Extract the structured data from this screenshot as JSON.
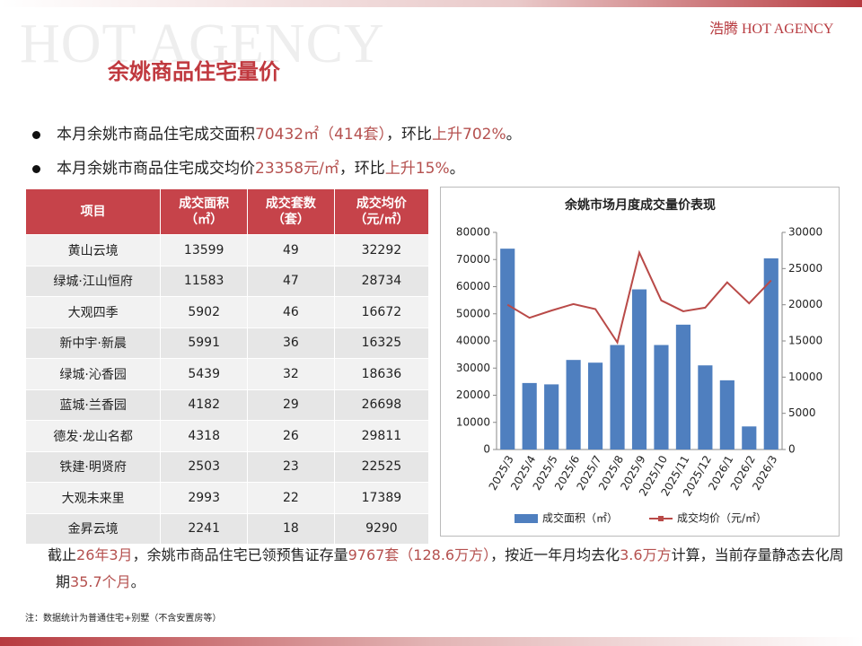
{
  "header": {
    "watermark": "HOT AGENCY",
    "brand": "浩腾 HOT AGENCY",
    "title": "余姚商品住宅量价"
  },
  "bullets": [
    [
      {
        "text": "本月余姚市商品住宅成交面积"
      },
      {
        "text": "70432㎡（414套）",
        "em": true
      },
      {
        "text": "，环比"
      },
      {
        "text": "上升702%",
        "em": true
      },
      {
        "text": "。"
      }
    ],
    [
      {
        "text": "本月余姚市商品住宅成交均价"
      },
      {
        "text": "23358元/㎡",
        "em": true
      },
      {
        "text": "，环比"
      },
      {
        "text": "上升15%",
        "em": true
      },
      {
        "text": "。"
      }
    ],
    [
      {
        "text": "截止"
      },
      {
        "text": "26年3月",
        "em": true
      },
      {
        "text": "，余姚市商品住宅已领预售证存量"
      },
      {
        "text": "9767套（128.6万方）",
        "em": true
      },
      {
        "text": "，按近一年月均去化"
      },
      {
        "text": "3.6万方",
        "em": true
      },
      {
        "text": "计算，当前存量静态去化周期"
      },
      {
        "text": "35.7个月",
        "em": true
      },
      {
        "text": "。"
      }
    ]
  ],
  "table": {
    "columns": [
      "项目",
      "成交面积\n（㎡）",
      "成交套数\n（套）",
      "成交均价\n（元/㎡）"
    ],
    "rows": [
      [
        "黄山云境",
        13599,
        49,
        32292
      ],
      [
        "绿城·江山恒府",
        11583,
        47,
        28734
      ],
      [
        "大观四季",
        5902,
        46,
        16672
      ],
      [
        "新中宇·新晨",
        5991,
        36,
        16325
      ],
      [
        "绿城·沁香园",
        5439,
        32,
        18636
      ],
      [
        "蓝城·兰香园",
        4182,
        29,
        26698
      ],
      [
        "德发·龙山名都",
        4318,
        26,
        29811
      ],
      [
        "铁建·明贤府",
        2503,
        23,
        22525
      ],
      [
        "大观未来里",
        2993,
        22,
        17389
      ],
      [
        "金昇云境",
        2241,
        18,
        9290
      ]
    ]
  },
  "chart_data": {
    "type": "bar-line",
    "title": "余姚市场月度成交量价表现",
    "categories": [
      "2025/3",
      "2025/4",
      "2025/5",
      "2025/6",
      "2025/7",
      "2025/8",
      "2025/9",
      "2025/10",
      "2025/11",
      "2025/12",
      "2026/1",
      "2026/2",
      "2026/3"
    ],
    "series": [
      {
        "name": "成交面积（㎡）",
        "color": "#4f7fbf",
        "type": "bar",
        "values": [
          74000,
          24500,
          24000,
          33000,
          32000,
          38500,
          59000,
          38500,
          46000,
          31000,
          25500,
          8500,
          70432
        ]
      },
      {
        "name": "成交均价（元/㎡）",
        "color": "#b94a48",
        "type": "line",
        "axis": "y2",
        "values": [
          20000,
          18200,
          19200,
          20100,
          19400,
          14800,
          27200,
          20600,
          19100,
          19600,
          23100,
          20200,
          23358
        ]
      }
    ],
    "ylim": [
      0,
      80000
    ],
    "yticks": [
      0,
      10000,
      20000,
      30000,
      40000,
      50000,
      60000,
      70000,
      80000
    ],
    "y2lim": [
      0,
      30000
    ],
    "y2ticks": [
      0,
      5000,
      10000,
      15000,
      20000,
      25000,
      30000
    ],
    "legend": "bottom"
  },
  "footnote": "注：数据统计为普通住宅+别墅（不含安置房等）"
}
